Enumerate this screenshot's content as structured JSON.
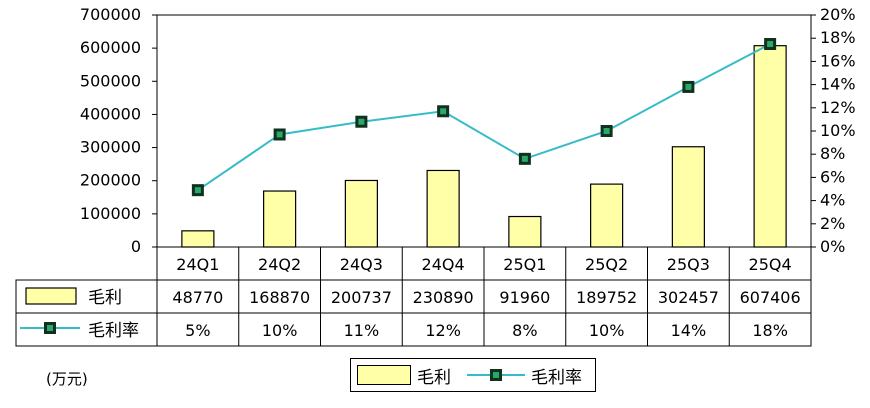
{
  "chart_data": {
    "type": "bar",
    "categories": [
      "24Q1",
      "24Q2",
      "24Q3",
      "24Q4",
      "25Q1",
      "25Q2",
      "25Q3",
      "25Q4"
    ],
    "series": [
      {
        "name": "毛利",
        "type": "bar",
        "axis": "left",
        "values": [
          48770,
          168870,
          200737,
          230890,
          91960,
          189752,
          302457,
          607406
        ],
        "labels": [
          "48770",
          "168870",
          "200737",
          "230890",
          "91960",
          "189752",
          "302457",
          "607406"
        ]
      },
      {
        "name": "毛利率",
        "type": "line",
        "axis": "right",
        "values": [
          5,
          10,
          11,
          12,
          8,
          10,
          14,
          18
        ],
        "plotted": [
          4.9,
          9.7,
          10.8,
          11.7,
          7.6,
          10.0,
          13.8,
          17.5
        ],
        "labels": [
          "5%",
          "10%",
          "11%",
          "12%",
          "8%",
          "10%",
          "14%",
          "18%"
        ]
      }
    ],
    "y_left": {
      "min": 0,
      "max": 700000,
      "ticks": [
        "0",
        "100000",
        "200000",
        "300000",
        "400000",
        "500000",
        "600000",
        "700000"
      ]
    },
    "y_right": {
      "min": 0,
      "max": 20,
      "ticks": [
        "0%",
        "2%",
        "4%",
        "6%",
        "8%",
        "10%",
        "12%",
        "14%",
        "16%",
        "18%",
        "20%"
      ]
    },
    "unit_label": "(万元)",
    "legend": [
      {
        "name": "毛利",
        "marker": "bar"
      },
      {
        "name": "毛利率",
        "marker": "line"
      }
    ],
    "legend_position": "bottom",
    "grid": false,
    "data_table": true
  },
  "colors": {
    "bar_fill": "#ffffa8",
    "line": "#36bcc8",
    "marker_outer": "#103020",
    "marker_inner": "#2aa86a"
  }
}
